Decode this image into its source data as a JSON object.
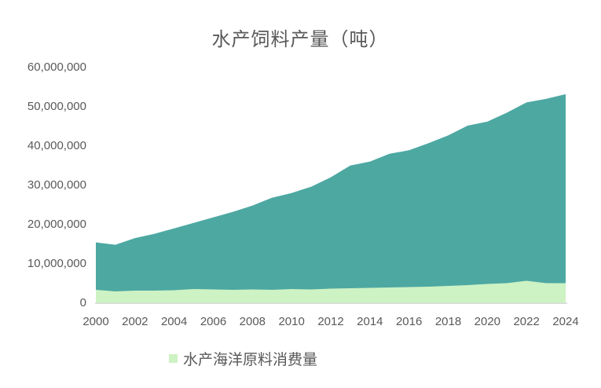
{
  "chart": {
    "title": "水产饲料产量（吨）",
    "legend": [
      {
        "label": "水产海洋原料消费量",
        "color": "#CDF2C4"
      }
    ]
  },
  "chart_data": {
    "type": "area",
    "title": "水产饲料产量（吨）",
    "x": [
      2000,
      2001,
      2002,
      2003,
      2004,
      2005,
      2006,
      2007,
      2008,
      2009,
      2010,
      2011,
      2012,
      2013,
      2014,
      2015,
      2016,
      2017,
      2018,
      2019,
      2020,
      2021,
      2022,
      2023,
      2024
    ],
    "x_tick_labels": [
      "2000",
      "2002",
      "2004",
      "2006",
      "2008",
      "2010",
      "2012",
      "2014",
      "2016",
      "2018",
      "2020",
      "2022",
      "2024"
    ],
    "y_tick_labels_top_to_bottom": [
      "60,000,000",
      "50,000,000",
      "40,000,000",
      "30,000,000",
      "20,000,000",
      "10,000,000",
      "0"
    ],
    "ylim": [
      0,
      60000000
    ],
    "grid": false,
    "legend_position": "bottom",
    "series": [
      {
        "name": "水产饲料产量（吨）",
        "color": "#4DA8A2",
        "values": [
          15400000,
          14800000,
          16500000,
          17600000,
          19000000,
          20400000,
          21800000,
          23200000,
          24800000,
          26800000,
          28000000,
          29600000,
          32000000,
          35000000,
          36000000,
          38000000,
          38900000,
          40700000,
          42700000,
          45200000,
          46200000,
          48500000,
          51100000,
          52000000,
          53200000
        ]
      },
      {
        "name": "水产海洋原料消费量",
        "color": "#CDF2C4",
        "values": [
          3300000,
          2900000,
          3100000,
          3100000,
          3200000,
          3500000,
          3400000,
          3300000,
          3400000,
          3300000,
          3500000,
          3400000,
          3600000,
          3700000,
          3800000,
          3900000,
          4000000,
          4100000,
          4300000,
          4500000,
          4800000,
          5000000,
          5600000,
          5000000,
          5000000
        ]
      }
    ],
    "axis_text_color": "#595959",
    "baseline_color": "#D9D9D9"
  }
}
